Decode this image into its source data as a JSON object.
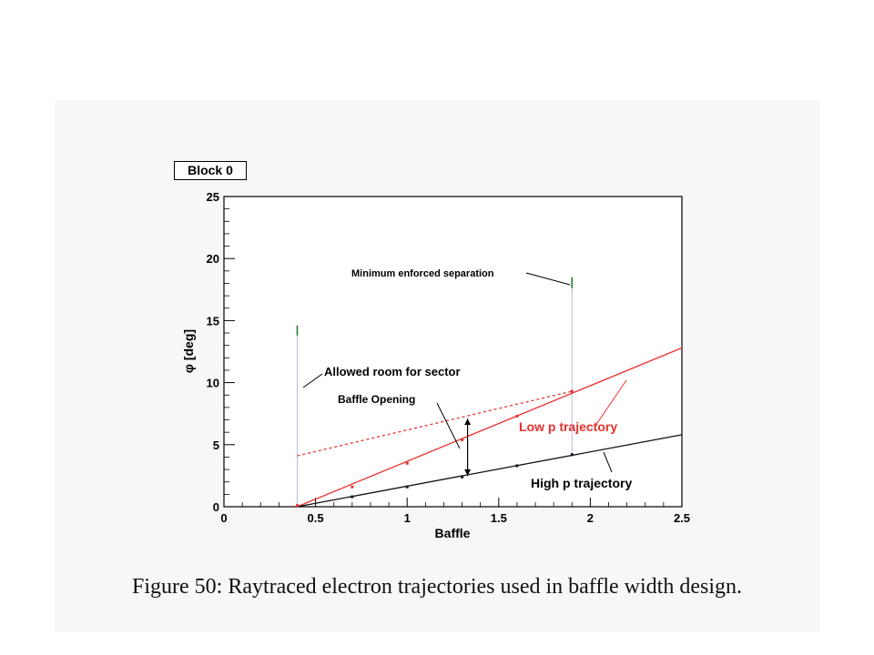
{
  "caption": "Figure 50: Raytraced electron trajectories used in baffle width design.",
  "chart_data": {
    "type": "line",
    "title": "Block 0",
    "xlabel": "Baffle",
    "ylabel": "φ [deg]",
    "xlim": [
      0,
      2.5
    ],
    "ylim": [
      0,
      25
    ],
    "xticks": [
      "0",
      "0.5",
      "1",
      "1.5",
      "2",
      "2.5"
    ],
    "yticks": [
      "0",
      "5",
      "10",
      "15",
      "20",
      "25"
    ],
    "grid": false,
    "colors": {
      "low_p": "#e8312f",
      "high_p": "#111111",
      "marker_bar": "#2a7a2a",
      "vertical_guide": "#b8b8e0"
    },
    "series": [
      {
        "key": "low_p",
        "x": [
          0.4,
          2.5
        ],
        "y": [
          0.0,
          12.8
        ],
        "points": [
          {
            "x": 0.4,
            "y": 0.1
          },
          {
            "x": 0.7,
            "y": 1.6
          },
          {
            "x": 1.0,
            "y": 3.5
          },
          {
            "x": 1.3,
            "y": 5.4
          },
          {
            "x": 1.6,
            "y": 7.3
          },
          {
            "x": 1.9,
            "y": 9.3
          }
        ]
      },
      {
        "key": "low_p_dashed",
        "x": [
          0.4,
          1.9
        ],
        "y": [
          4.1,
          9.3
        ]
      },
      {
        "key": "high_p",
        "x": [
          0.4,
          2.5
        ],
        "y": [
          0.0,
          5.8
        ],
        "points": [
          {
            "x": 0.7,
            "y": 0.8
          },
          {
            "x": 1.0,
            "y": 1.6
          },
          {
            "x": 1.3,
            "y": 2.4
          },
          {
            "x": 1.6,
            "y": 3.3
          },
          {
            "x": 1.9,
            "y": 4.2
          }
        ]
      }
    ],
    "vertical_markers": [
      {
        "x": 0.4,
        "y_bottom": 0.0,
        "bar_from": 13.8,
        "bar_to": 14.6
      },
      {
        "x": 1.9,
        "y_bottom": 4.2,
        "bar_from": 17.6,
        "bar_to": 18.5
      }
    ],
    "opening_arrow": {
      "x": 1.33,
      "y_from": 2.5,
      "y_to": 7.1
    },
    "annotations": {
      "min_sep": "Minimum enforced separation",
      "allowed_room": "Allowed room for sector",
      "baffle_opening": "Baffle Opening",
      "low_p": "Low p trajectory",
      "high_p": "High p trajectory"
    }
  }
}
